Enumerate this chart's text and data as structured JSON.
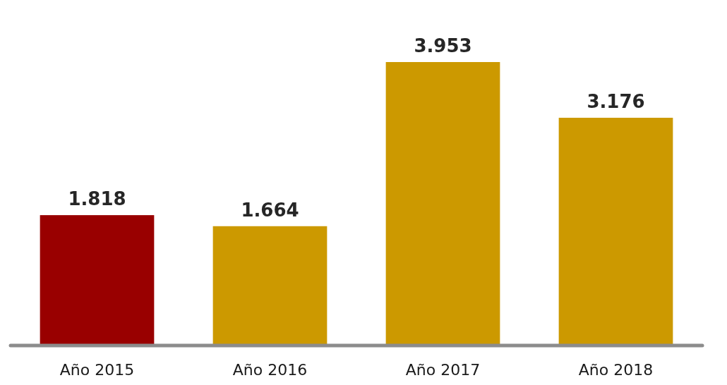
{
  "chart_data": {
    "type": "bar",
    "categories": [
      "Año 2015",
      "Año 2016",
      "Año 2017",
      "Año 2018"
    ],
    "values": [
      1818,
      1664,
      3953,
      3176
    ],
    "colors": [
      "#990000",
      "#cc9900",
      "#cc9900",
      "#cc9900"
    ],
    "value_labels": [
      "1.818",
      "1.664",
      "3.953",
      "3.176"
    ]
  }
}
